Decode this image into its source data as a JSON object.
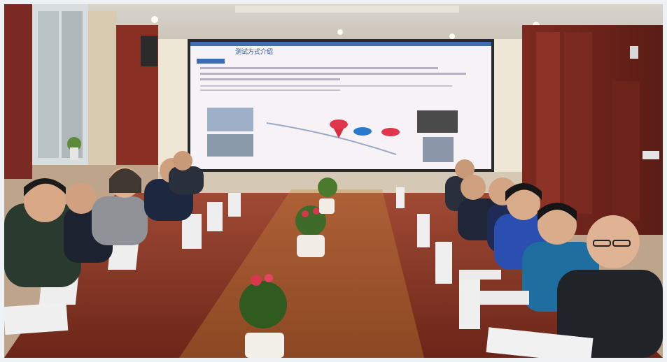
{
  "scene": {
    "description_labels": {
      "slide_title": "测试方式介绍"
    },
    "colors": {
      "wall_wood": "#7a2a22",
      "wall_cream": "#efe7d6",
      "table": "#8a2f1f",
      "screen_bg": "#f6f2f6",
      "frame_bg": "#eef2f5"
    }
  }
}
